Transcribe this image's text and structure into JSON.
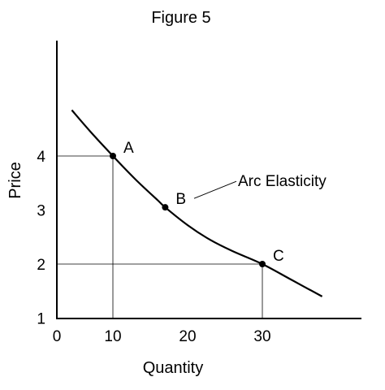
{
  "chart_data": {
    "type": "line",
    "title": "Figure 5",
    "xlabel": "Quantity",
    "ylabel": "Price",
    "x_ticks": [
      "0",
      "10",
      "20",
      "30"
    ],
    "y_ticks": [
      "1",
      "2",
      "3",
      "4"
    ],
    "xlim": [
      0,
      40
    ],
    "ylim": [
      0,
      5
    ],
    "grid": false,
    "curve": [
      {
        "x": 4.5,
        "y": 4.85
      },
      {
        "x": 7,
        "y": 4.45
      },
      {
        "x": 10,
        "y": 4.0
      },
      {
        "x": 13,
        "y": 3.57
      },
      {
        "x": 16,
        "y": 3.18
      },
      {
        "x": 17,
        "y": 3.05
      },
      {
        "x": 20,
        "y": 2.72
      },
      {
        "x": 23,
        "y": 2.45
      },
      {
        "x": 26,
        "y": 2.24
      },
      {
        "x": 30,
        "y": 2.0
      },
      {
        "x": 34,
        "y": 1.7
      },
      {
        "x": 38,
        "y": 1.4
      }
    ],
    "points": [
      {
        "label": "A",
        "x": 10,
        "y": 4
      },
      {
        "label": "B",
        "x": 17,
        "y": 3.05
      },
      {
        "label": "C",
        "x": 30,
        "y": 2
      }
    ],
    "reference_lines": [
      {
        "x": 10,
        "y": 4
      },
      {
        "x": 30,
        "y": 2
      }
    ],
    "annotation": {
      "text": "Arc Elasticity",
      "x": 20,
      "y": 3.2
    }
  }
}
